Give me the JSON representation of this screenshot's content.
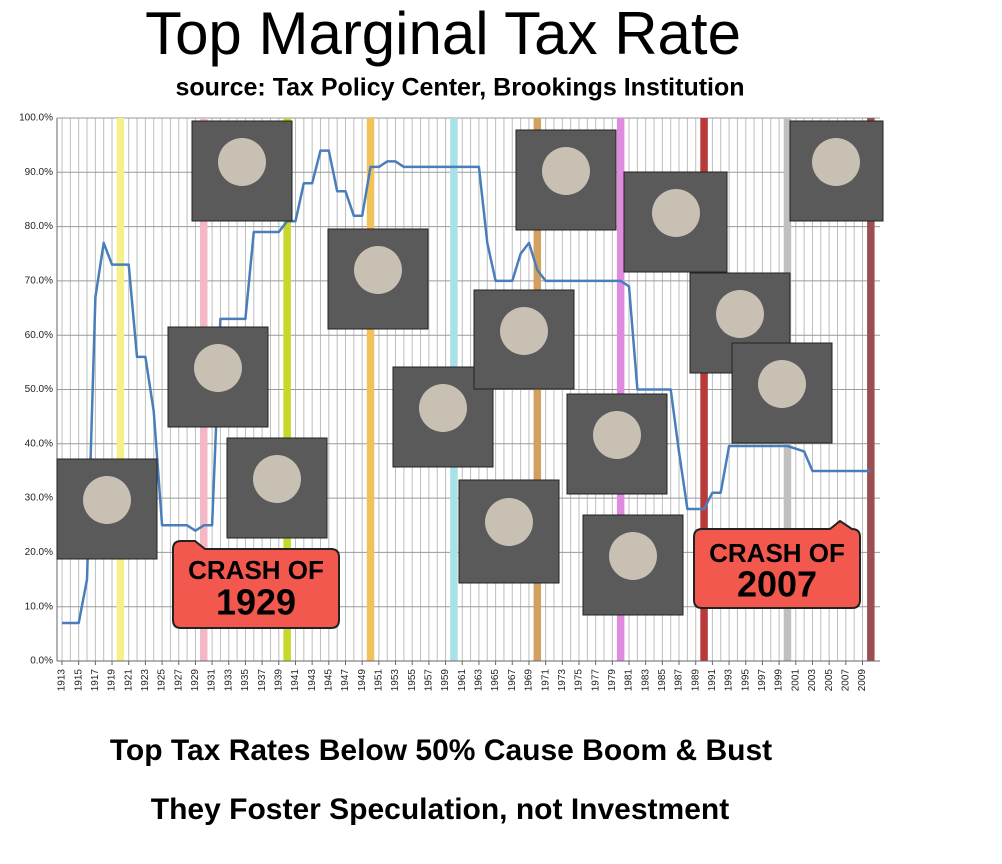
{
  "chart_data": {
    "type": "line",
    "title": "Top Marginal Tax Rate",
    "subtitle": "source: Tax Policy Center, Brookings Institution",
    "footer": [
      "Top Tax Rates Below 50% Cause Boom & Bust",
      "They Foster Speculation, not Investment"
    ],
    "annotations": [
      [
        "CRASH OF",
        "1929"
      ],
      [
        "CRASH OF",
        "2007"
      ]
    ],
    "x": [
      1913,
      1914,
      1915,
      1916,
      1917,
      1918,
      1919,
      1920,
      1921,
      1922,
      1923,
      1924,
      1925,
      1926,
      1927,
      1928,
      1929,
      1930,
      1931,
      1932,
      1933,
      1934,
      1935,
      1936,
      1937,
      1938,
      1939,
      1940,
      1941,
      1942,
      1943,
      1944,
      1945,
      1946,
      1947,
      1948,
      1949,
      1950,
      1951,
      1952,
      1953,
      1954,
      1955,
      1956,
      1957,
      1958,
      1959,
      1960,
      1961,
      1962,
      1963,
      1964,
      1965,
      1966,
      1967,
      1968,
      1969,
      1970,
      1971,
      1972,
      1973,
      1974,
      1975,
      1976,
      1977,
      1978,
      1979,
      1980,
      1981,
      1982,
      1983,
      1984,
      1985,
      1986,
      1987,
      1988,
      1989,
      1990,
      1991,
      1992,
      1993,
      1994,
      1995,
      1996,
      1997,
      1998,
      1999,
      2000,
      2001,
      2002,
      2003,
      2004,
      2005,
      2006,
      2007,
      2008,
      2009,
      2010
    ],
    "series": [
      {
        "name": "Top Marginal Tax Rate",
        "color": "#4a7ebb",
        "values": [
          7,
          7,
          7,
          15,
          67,
          77,
          73,
          73,
          73,
          56,
          56,
          46,
          25,
          25,
          25,
          25,
          24,
          25,
          25,
          63,
          63,
          63,
          63,
          79,
          79,
          79,
          79,
          81,
          81,
          88,
          88,
          94,
          94,
          86.5,
          86.5,
          82,
          82,
          91,
          91,
          92,
          92,
          91,
          91,
          91,
          91,
          91,
          91,
          91,
          91,
          91,
          91,
          77,
          70,
          70,
          70,
          75,
          77,
          72,
          70,
          70,
          70,
          70,
          70,
          70,
          70,
          70,
          70,
          70,
          69,
          50,
          50,
          50,
          50,
          50,
          38.5,
          28,
          28,
          28,
          31,
          31,
          39.6,
          39.6,
          39.6,
          39.6,
          39.6,
          39.6,
          39.6,
          39.6,
          39.1,
          38.6,
          35,
          35,
          35,
          35,
          35,
          35,
          35,
          35
        ]
      }
    ],
    "bands": [
      {
        "x": 1920,
        "color": "#f5f08a"
      },
      {
        "x": 1930,
        "color": "#f4b8c4"
      },
      {
        "x": 1940,
        "color": "#c8d82a"
      },
      {
        "x": 1950,
        "color": "#f2c25a"
      },
      {
        "x": 1960,
        "color": "#a8e2e6"
      },
      {
        "x": 1970,
        "color": "#d2a060"
      },
      {
        "x": 1980,
        "color": "#e08ae0"
      },
      {
        "x": 1990,
        "color": "#b83a3a"
      },
      {
        "x": 2000,
        "color": "#c0c0c0"
      },
      {
        "x": 2010,
        "color": "#9a5050"
      }
    ],
    "xlim": [
      1912.4,
      2011.1
    ],
    "xticks": [
      1913,
      1915,
      1917,
      1919,
      1921,
      1923,
      1925,
      1927,
      1929,
      1931,
      1933,
      1935,
      1937,
      1939,
      1941,
      1943,
      1945,
      1947,
      1949,
      1951,
      1953,
      1955,
      1957,
      1959,
      1961,
      1963,
      1965,
      1967,
      1969,
      1971,
      1973,
      1975,
      1977,
      1979,
      1981,
      1983,
      1985,
      1987,
      1989,
      1991,
      1993,
      1995,
      1997,
      1999,
      2001,
      2003,
      2005,
      2007,
      2009
    ],
    "ylim": [
      0,
      100
    ],
    "yticks": [
      {
        "value": 0,
        "label": "0.0%"
      },
      {
        "value": 10,
        "label": "10.0%"
      },
      {
        "value": 20,
        "label": "20.0%"
      },
      {
        "value": 30,
        "label": "30.0%"
      },
      {
        "value": 40,
        "label": "40.0%"
      },
      {
        "value": 50,
        "label": "50.0%"
      },
      {
        "value": 60,
        "label": "60.0%"
      },
      {
        "value": 70,
        "label": "70.0%"
      },
      {
        "value": 80,
        "label": "80.0%"
      },
      {
        "value": 90,
        "label": "90.0%"
      },
      {
        "value": 100,
        "label": "100.0%"
      }
    ],
    "grid": true
  }
}
